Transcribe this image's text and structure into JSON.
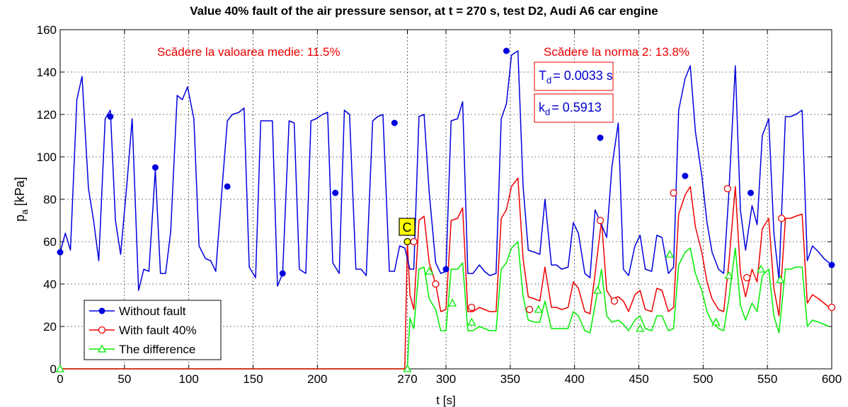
{
  "chart_data": {
    "type": "line",
    "title": "Value 40% fault of the air pressure sensor, at t = 270 s, test D2, Audi A6 car engine",
    "xlabel": "t [s]",
    "ylabel": "p_a [kPa]",
    "ylabel_main": "p",
    "ylabel_sub": "a",
    "ylabel_unit": " [kPa]",
    "xlim": [
      0,
      600
    ],
    "ylim": [
      0,
      160
    ],
    "grid": true,
    "legend_position": "bottom-left",
    "x_ticks": [
      0,
      50,
      100,
      150,
      200,
      270,
      300,
      350,
      400,
      450,
      500,
      550,
      600
    ],
    "y_ticks": [
      0,
      20,
      40,
      60,
      80,
      100,
      120,
      140,
      160
    ],
    "colors": {
      "without": "#0000dd",
      "with": "#ee0000",
      "diff": "#00ee00",
      "annotation": "#ee0000",
      "params": "#0000cc"
    },
    "series": [
      {
        "name": "Without fault",
        "color": "#0000dd",
        "marker": "filled-circle",
        "x": [
          0,
          4,
          8,
          13,
          17,
          22,
          26,
          30,
          35,
          39,
          43,
          47,
          52,
          56,
          61,
          65,
          69,
          74,
          78,
          82,
          86,
          91,
          95,
          99,
          104,
          108,
          113,
          117,
          121,
          126,
          130,
          134,
          139,
          143,
          147,
          152,
          156,
          160,
          165,
          169,
          173,
          178,
          182,
          186,
          191,
          195,
          199,
          204,
          208,
          212,
          217,
          221,
          225,
          230,
          234,
          238,
          243,
          247,
          251,
          256,
          260,
          264,
          268,
          272,
          275,
          279,
          283,
          287,
          292,
          296,
          300,
          304,
          309,
          313,
          317,
          321,
          326,
          330,
          334,
          339,
          343,
          347,
          351,
          356,
          360,
          364,
          369,
          373,
          377,
          382,
          386,
          390,
          395,
          399,
          403,
          408,
          412,
          416,
          421,
          425,
          429,
          434,
          438,
          442,
          447,
          451,
          455,
          460,
          464,
          468,
          473,
          477,
          481,
          486,
          490,
          494,
          499,
          503,
          507,
          512,
          516,
          520,
          525,
          529,
          533,
          538,
          542,
          546,
          551,
          555,
          559,
          564,
          568,
          572,
          577,
          581,
          585,
          590,
          594,
          598
        ],
        "y": [
          55,
          64,
          56,
          127,
          138,
          85,
          70,
          51,
          118,
          122,
          70,
          54,
          88,
          118,
          37,
          47,
          46,
          94,
          45,
          45,
          65,
          129,
          127,
          133,
          118,
          58,
          52,
          51,
          46,
          86,
          117,
          120,
          121,
          123,
          48,
          43,
          117,
          117,
          117,
          39,
          45,
          117,
          116,
          47,
          45,
          117,
          118,
          120,
          121,
          50,
          45,
          122,
          120,
          47,
          47,
          44,
          117,
          119,
          120,
          46,
          46,
          58,
          57,
          47,
          47,
          119,
          120,
          83,
          50,
          45,
          46,
          117,
          118,
          126,
          45,
          45,
          49,
          46,
          44,
          45,
          118,
          125,
          148,
          150,
          86,
          56,
          55,
          54,
          80,
          49,
          49,
          47,
          48,
          69,
          64,
          45,
          43,
          75,
          68,
          62,
          95,
          116,
          47,
          44,
          58,
          63,
          47,
          46,
          63,
          62,
          45,
          48,
          122,
          137,
          143,
          112,
          91,
          69,
          55,
          47,
          45,
          83,
          143,
          75,
          56,
          77,
          68,
          110,
          118,
          64,
          42,
          119,
          119,
          120,
          122,
          51,
          58,
          55,
          52,
          50
        ],
        "marker_x": [
          0,
          39,
          74,
          130,
          173,
          214,
          260,
          300,
          347,
          420,
          486,
          537,
          600
        ],
        "marker_y": [
          55,
          119,
          95,
          86,
          45,
          83,
          116,
          47,
          150,
          109,
          91,
          83,
          49
        ]
      },
      {
        "name": "With fault 40%",
        "color": "#ee0000",
        "marker": "open-circle",
        "x": [
          0,
          268,
          270,
          272,
          275,
          279,
          283,
          287,
          292,
          296,
          300,
          304,
          309,
          313,
          317,
          321,
          326,
          330,
          334,
          339,
          343,
          347,
          351,
          356,
          360,
          364,
          369,
          373,
          377,
          382,
          386,
          390,
          395,
          399,
          403,
          408,
          412,
          416,
          421,
          425,
          429,
          434,
          438,
          442,
          447,
          451,
          455,
          460,
          464,
          468,
          473,
          477,
          481,
          486,
          490,
          494,
          499,
          503,
          507,
          512,
          516,
          520,
          525,
          529,
          533,
          538,
          542,
          546,
          551,
          555,
          559,
          564,
          568,
          572,
          577,
          581,
          585,
          590,
          594,
          598
        ],
        "y": [
          0,
          0,
          60,
          35,
          28,
          70,
          72,
          50,
          40,
          27,
          28,
          70,
          71,
          76,
          27,
          27,
          29,
          28,
          27,
          27,
          71,
          75,
          86,
          90,
          52,
          34,
          33,
          32,
          48,
          29,
          29,
          28,
          29,
          41,
          38,
          27,
          26,
          45,
          70,
          37,
          33,
          34,
          32,
          27,
          35,
          37,
          28,
          27,
          38,
          37,
          27,
          29,
          73,
          82,
          86,
          67,
          55,
          41,
          33,
          28,
          27,
          50,
          86,
          45,
          34,
          47,
          41,
          66,
          71,
          38,
          25,
          71,
          71,
          72,
          73,
          31,
          35,
          33,
          31,
          29
        ],
        "marker_x": [
          275,
          292,
          320,
          365,
          420,
          431,
          477,
          519,
          534,
          561,
          600
        ],
        "marker_y": [
          60,
          40,
          29,
          28,
          70,
          32,
          83,
          85,
          43,
          71,
          29
        ]
      },
      {
        "name": "The difference",
        "color": "#00ee00",
        "marker": "open-triangle",
        "x": [
          0,
          268,
          270,
          272,
          275,
          279,
          283,
          287,
          292,
          296,
          300,
          304,
          309,
          313,
          317,
          321,
          326,
          330,
          334,
          339,
          343,
          347,
          351,
          356,
          360,
          364,
          369,
          373,
          377,
          382,
          386,
          390,
          395,
          399,
          403,
          408,
          412,
          416,
          421,
          425,
          429,
          434,
          438,
          442,
          447,
          451,
          455,
          460,
          464,
          468,
          473,
          477,
          481,
          486,
          490,
          494,
          499,
          503,
          507,
          512,
          516,
          520,
          525,
          529,
          533,
          538,
          542,
          546,
          551,
          555,
          559,
          564,
          568,
          572,
          577,
          581,
          585,
          590,
          594,
          598
        ],
        "y": [
          0,
          0,
          0,
          24,
          19,
          47,
          48,
          33,
          28,
          18,
          18,
          47,
          47,
          50,
          18,
          18,
          20,
          19,
          18,
          18,
          47,
          50,
          57,
          60,
          34,
          23,
          22,
          22,
          32,
          19,
          19,
          19,
          19,
          27,
          25,
          18,
          17,
          30,
          47,
          25,
          22,
          23,
          21,
          18,
          23,
          25,
          19,
          18,
          25,
          25,
          18,
          19,
          49,
          55,
          57,
          45,
          37,
          27,
          22,
          19,
          18,
          33,
          57,
          30,
          23,
          31,
          27,
          44,
          47,
          25,
          17,
          47,
          47,
          48,
          48,
          20,
          23,
          22,
          21,
          20
        ],
        "marker_x": [
          0,
          270,
          287,
          305,
          320,
          372,
          418,
          451,
          474,
          510,
          520,
          545,
          560
        ],
        "marker_y": [
          0,
          0,
          46,
          31,
          22,
          28,
          37,
          19,
          54,
          22,
          44,
          47,
          42
        ]
      }
    ],
    "annotations": {
      "mean_decrease": "Scădere la valoarea medie: 11.5%",
      "norm2_decrease": "Scădere la norma 2: 13.8%",
      "td_main": "T",
      "td_sub": "d",
      "td_value": "= 0.0033 s",
      "kd_main": "k",
      "kd_sub": "d",
      "kd_value": "= 0.5913",
      "marker_c_label": "C",
      "marker_c_x": 270,
      "marker_c_y": 60
    }
  }
}
